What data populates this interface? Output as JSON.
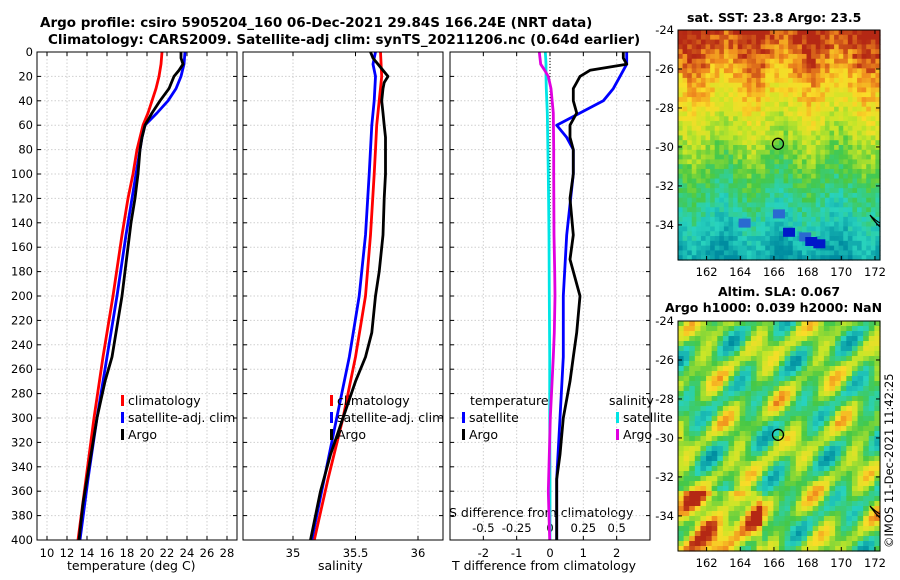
{
  "titles": {
    "line1": "Argo profile: csiro 5905204_160 06-Dec-2021 29.84S 166.24E (NRT data)",
    "line2": "Climatology: CARS2009. Satellite-adj clim: synTS_20211206.nc (0.64d earlier)"
  },
  "colors": {
    "climatology": "#ff0000",
    "satellite": "#0000ff",
    "argo": "#000000",
    "sat_salinity": "#00e5e5",
    "argo_salinity": "#e000e0"
  },
  "chart_data": [
    {
      "type": "line",
      "id": "temperature",
      "xlabel": "temperature (deg C)",
      "xlim": [
        9,
        29
      ],
      "xticks": [
        10,
        12,
        14,
        16,
        18,
        20,
        22,
        24,
        26,
        28
      ],
      "ylabel": "depth",
      "ylim": [
        0,
        400
      ],
      "yticks": [
        0,
        20,
        40,
        60,
        80,
        100,
        120,
        140,
        160,
        180,
        200,
        220,
        240,
        260,
        280,
        300,
        320,
        340,
        360,
        380,
        400
      ],
      "legend": [
        "climatology",
        "satellite-adj. clim",
        "Argo"
      ],
      "series": [
        {
          "name": "climatology",
          "color": "#ff0000",
          "depth": [
            0,
            10,
            20,
            30,
            40,
            50,
            60,
            80,
            100,
            120,
            150,
            200,
            250,
            300,
            350,
            400
          ],
          "values": [
            21.5,
            21.4,
            21.2,
            20.9,
            20.5,
            20.1,
            19.6,
            19.0,
            18.6,
            18.1,
            17.5,
            16.6,
            15.6,
            14.7,
            13.9,
            13.1
          ]
        },
        {
          "name": "satellite-adj. clim",
          "color": "#0000ff",
          "depth": [
            0,
            10,
            20,
            30,
            40,
            50,
            60,
            70,
            80,
            100,
            150,
            200,
            250,
            300,
            350,
            400
          ],
          "values": [
            23.8,
            23.7,
            23.4,
            22.9,
            22.1,
            21.0,
            19.8,
            19.5,
            19.3,
            18.9,
            17.9,
            17.0,
            16.0,
            15.0,
            14.1,
            13.3
          ]
        },
        {
          "name": "Argo",
          "color": "#000000",
          "depth": [
            0,
            5,
            10,
            15,
            20,
            30,
            40,
            50,
            60,
            70,
            80,
            100,
            120,
            140,
            160,
            180,
            200,
            230,
            250,
            270,
            300,
            330,
            350,
            370,
            400
          ],
          "values": [
            23.4,
            23.4,
            23.6,
            23.2,
            22.7,
            22.2,
            21.3,
            20.5,
            19.8,
            19.5,
            19.3,
            19.1,
            18.8,
            18.4,
            18.1,
            17.8,
            17.5,
            16.9,
            16.5,
            15.8,
            15.0,
            14.4,
            14.0,
            13.6,
            13.2
          ]
        }
      ]
    },
    {
      "type": "line",
      "id": "salinity",
      "xlabel": "salinity",
      "xlim": [
        34.6,
        36.2
      ],
      "xticks": [
        35,
        35.5,
        36
      ],
      "ylim": [
        0,
        400
      ],
      "legend": [
        "climatology",
        "satellite-adj. clim",
        "Argo"
      ],
      "series": [
        {
          "name": "climatology",
          "color": "#ff0000",
          "depth": [
            0,
            20,
            40,
            60,
            80,
            100,
            150,
            200,
            250,
            300,
            350,
            400
          ],
          "values": [
            35.7,
            35.71,
            35.69,
            35.67,
            35.66,
            35.65,
            35.62,
            35.58,
            35.5,
            35.4,
            35.28,
            35.17
          ]
        },
        {
          "name": "satellite-adj. clim",
          "color": "#0000ff",
          "depth": [
            0,
            10,
            20,
            40,
            60,
            80,
            100,
            150,
            200,
            250,
            300,
            350,
            400
          ],
          "values": [
            35.66,
            35.64,
            35.66,
            35.65,
            35.63,
            35.62,
            35.61,
            35.58,
            35.53,
            35.45,
            35.35,
            35.25,
            35.15
          ]
        },
        {
          "name": "Argo",
          "color": "#000000",
          "depth": [
            0,
            5,
            10,
            15,
            20,
            25,
            30,
            40,
            50,
            60,
            70,
            80,
            100,
            120,
            150,
            180,
            200,
            230,
            250,
            270,
            300,
            330,
            360,
            380,
            400
          ],
          "values": [
            35.62,
            35.64,
            35.68,
            35.72,
            35.76,
            35.73,
            35.72,
            35.71,
            35.72,
            35.73,
            35.74,
            35.74,
            35.74,
            35.73,
            35.72,
            35.69,
            35.66,
            35.63,
            35.58,
            35.5,
            35.4,
            35.3,
            35.22,
            35.18,
            35.14
          ]
        }
      ]
    },
    {
      "type": "line",
      "id": "differences",
      "xlabel": "T difference from climatology",
      "xlim": [
        -3,
        3
      ],
      "xticks": [
        -2,
        -1,
        0,
        1,
        2
      ],
      "xlabel_top": "S difference from climatology",
      "xticks_top": [
        "-0.5",
        "-0.25",
        "0",
        "0.25",
        "0.5"
      ],
      "ylim": [
        0,
        400
      ],
      "legend": {
        "temperature_header": "temperature",
        "salinity_header": "salinity",
        "entries": [
          "satellite",
          "Argo",
          "satellite",
          "Argo"
        ]
      },
      "series": [
        {
          "name": "temperature satellite",
          "color": "#0000ff",
          "depth": [
            0,
            10,
            20,
            30,
            40,
            50,
            60,
            70,
            80,
            100,
            150,
            200,
            250,
            300,
            350,
            400
          ],
          "values": [
            2.3,
            2.3,
            2.1,
            1.9,
            1.6,
            0.9,
            0.2,
            0.5,
            0.7,
            0.7,
            0.5,
            0.4,
            0.4,
            0.3,
            0.2,
            0.2
          ]
        },
        {
          "name": "temperature Argo",
          "color": "#000000",
          "depth": [
            0,
            5,
            10,
            15,
            20,
            25,
            30,
            40,
            50,
            60,
            70,
            80,
            100,
            120,
            150,
            170,
            200,
            230,
            250,
            270,
            300,
            330,
            350,
            370,
            400
          ],
          "values": [
            2.2,
            2.2,
            2.3,
            1.2,
            0.9,
            0.8,
            0.7,
            0.7,
            0.8,
            0.6,
            0.6,
            0.7,
            0.7,
            0.6,
            0.7,
            0.6,
            0.9,
            0.8,
            0.7,
            0.6,
            0.4,
            0.3,
            0.2,
            0.2,
            0.2
          ]
        },
        {
          "name": "salinity satellite",
          "color": "#00e5e5",
          "depth": [
            0,
            5,
            10,
            20,
            30,
            50,
            100,
            150,
            200,
            250,
            300,
            350,
            400
          ],
          "values": [
            -0.14,
            -0.13,
            -0.12,
            -0.12,
            -0.11,
            -0.08,
            -0.05,
            -0.03,
            -0.02,
            -0.01,
            -0.01,
            0,
            0
          ]
        },
        {
          "name": "salinity Argo",
          "color": "#e000e0",
          "depth": [
            0,
            5,
            10,
            15,
            20,
            30,
            50,
            80,
            100,
            150,
            180,
            200,
            230,
            250,
            300,
            330,
            360,
            380,
            400
          ],
          "values": [
            -0.32,
            -0.3,
            -0.28,
            -0.16,
            -0.05,
            0.03,
            0.1,
            0.11,
            0.11,
            0.12,
            0.14,
            0.15,
            0.13,
            0.1,
            0.01,
            -0.02,
            -0.05,
            -0.03,
            -0.01
          ]
        }
      ]
    },
    {
      "type": "heatmap",
      "id": "sst-map",
      "title": "sat. SST: 23.8 Argo: 23.5",
      "xticks": [
        162,
        164,
        166,
        168,
        170,
        172
      ],
      "yticks": [
        -24,
        -26,
        -28,
        -30,
        -32,
        -34
      ],
      "xlim": [
        160.3,
        172.3
      ],
      "ylim": [
        -35.8,
        -24
      ],
      "profile_location": {
        "lon": 166.24,
        "lat": -29.84
      }
    },
    {
      "type": "heatmap",
      "id": "sla-map",
      "title_line1": "Altim. SLA: 0.067",
      "title_line2": "Argo h1000: 0.039 h2000: NaN",
      "xticks": [
        162,
        164,
        166,
        168,
        170,
        172
      ],
      "yticks": [
        -24,
        -26,
        -28,
        -30,
        -32,
        -34
      ],
      "xlim": [
        160.3,
        172.3
      ],
      "ylim": [
        -35.8,
        -24
      ],
      "profile_location": {
        "lon": 166.24,
        "lat": -29.84
      }
    }
  ],
  "side_label": "©IMOS 11-Dec-2021 11:42:25"
}
